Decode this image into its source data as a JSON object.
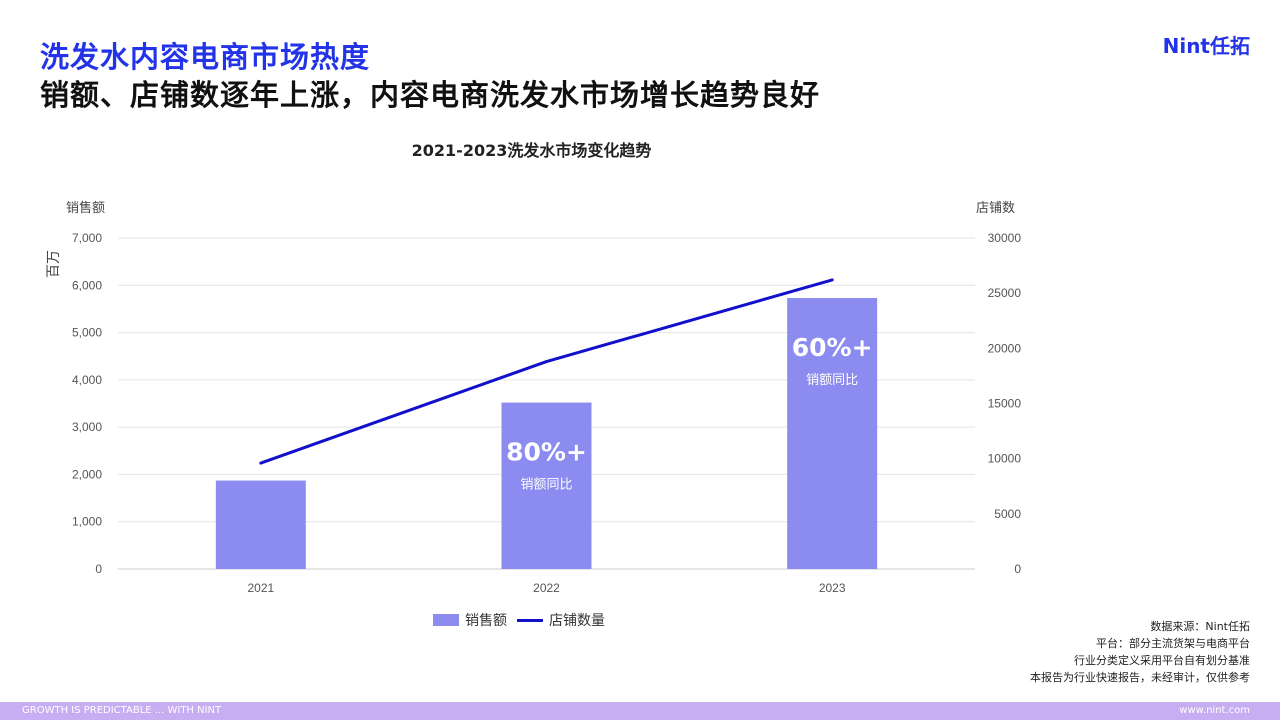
{
  "header": {
    "title": "洗发水内容电商市场热度",
    "subtitle": "销额、店铺数逐年上涨，内容电商洗发水市场增长趋势良好",
    "logo": "Nint任拓"
  },
  "chart_data": {
    "type": "bar",
    "title": "2021-2023洗发水市场变化趋势",
    "categories": [
      "2021",
      "2022",
      "2023"
    ],
    "ylabel": "销售额",
    "yunit": "百万",
    "ylim": [
      0,
      7000
    ],
    "yticks": [
      "0",
      "1,000",
      "2,000",
      "3,000",
      "4,000",
      "5,000",
      "6,000",
      "7,000"
    ],
    "y2label": "店铺数",
    "y2lim": [
      0,
      30000
    ],
    "y2ticks": [
      "0",
      "5000",
      "10000",
      "15000",
      "20000",
      "25000",
      "30000"
    ],
    "grid": true,
    "legend_position": "bottom",
    "series": [
      {
        "name": "销售额",
        "type": "bar",
        "axis": "left",
        "color": "#8b8bf0",
        "values": [
          1870,
          3520,
          5730
        ]
      },
      {
        "name": "店铺数量",
        "type": "line",
        "axis": "right",
        "color": "#1111cc",
        "values": [
          9600,
          18800,
          26200
        ]
      }
    ],
    "annotations": [
      {
        "category": "2022",
        "value": "80%+",
        "note": "销额同比"
      },
      {
        "category": "2023",
        "value": "60%+",
        "note": "销额同比"
      }
    ]
  },
  "source": {
    "lines": [
      "数据来源：Nint任拓",
      "平台：部分主流货架与电商平台",
      "行业分类定义采用平台自有划分基准",
      "本报告为行业快速报告，未经审计，仅供参考"
    ]
  },
  "footer": {
    "left": "GROWTH IS PREDICTABLE ... WITH NINT",
    "right": "www.nint.com"
  },
  "colors": {
    "accent": "#2233e8",
    "bar": "#8b8bf0",
    "line": "#1111cc",
    "footer": "#c7adf2"
  }
}
